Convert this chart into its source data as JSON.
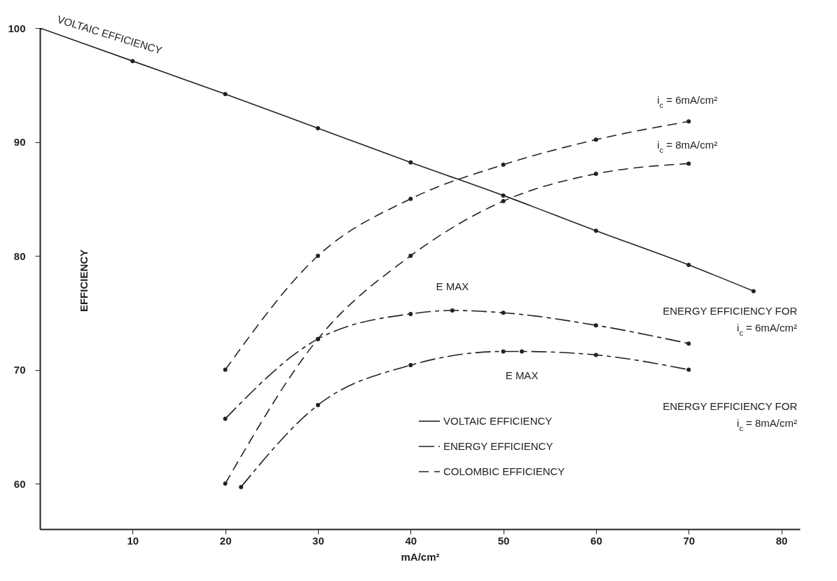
{
  "chart_data": {
    "type": "line",
    "xlabel": "mA/cm²",
    "ylabel": "EFFICIENCY",
    "xlim": [
      0,
      82
    ],
    "xticks": [
      10,
      20,
      30,
      40,
      50,
      60,
      70,
      80
    ],
    "ylim": [
      56,
      100
    ],
    "yticks": [
      60,
      70,
      80,
      90,
      100
    ],
    "grid": false,
    "marker": "circle",
    "legend": "bottom right",
    "series": [
      {
        "name": "VOLTAIC EFFICIENCY",
        "color": "#222222",
        "line_style": "solid",
        "x": [
          0,
          10,
          20,
          30,
          40,
          50,
          60,
          70,
          77
        ],
        "values": [
          100,
          97.1,
          94.2,
          91.2,
          88.2,
          85.3,
          82.2,
          79.2,
          76.9
        ]
      },
      {
        "name": "ENERGY EFFICIENCY",
        "color": "#222222",
        "line_style": "dashdot",
        "x": [
          20,
          30,
          40,
          44.5,
          50,
          60,
          70
        ],
        "values": [
          65.7,
          72.7,
          74.9,
          75.2,
          75.0,
          73.9,
          72.3
        ]
      },
      {
        "color": "#222222",
        "line_style": "dashdot",
        "x": [
          21.7,
          30,
          40,
          50,
          52,
          60,
          70
        ],
        "values": [
          59.7,
          66.9,
          70.4,
          71.6,
          71.6,
          71.3,
          70.0
        ]
      },
      {
        "name": "COLOMBIC EFFICIENCY",
        "color": "#222222",
        "line_style": "dashed",
        "x": [
          20,
          30,
          40,
          50,
          60,
          70
        ],
        "values": [
          70.0,
          80.0,
          85.0,
          88.0,
          90.2,
          91.8
        ]
      },
      {
        "color": "#222222",
        "line_style": "dashed",
        "x": [
          20,
          30,
          40,
          50,
          60,
          70
        ],
        "values": [
          60.0,
          72.7,
          80.0,
          84.8,
          87.2,
          88.1
        ]
      }
    ],
    "annotations": [
      {
        "text": "VOLTAIC EFFICIENCY",
        "x": 10,
        "y": 97.1
      },
      {
        "text": "i$_{c}$ = 6mA/cm²",
        "x": 70,
        "y": 91.8
      },
      {
        "text": "i$_{c}$ = 8mA/cm²",
        "x": 70,
        "y": 88.1
      },
      {
        "text": "E MAX",
        "x": 44.5,
        "y": 75.2
      },
      {
        "text": "E MAX",
        "x": 52,
        "y": 71.6
      },
      {
        "text": "ENERGY EFFICIENCY FOR",
        "x": 70,
        "y": 72.3
      },
      "i$_{c}$ = 6mA/cm²",
      {
        "text": "ENERGY EFFICIENCY FOR",
        "x": 70,
        "y": 70.0
      },
      "i$_{c}$ = 8mA/cm²"
    ]
  }
}
